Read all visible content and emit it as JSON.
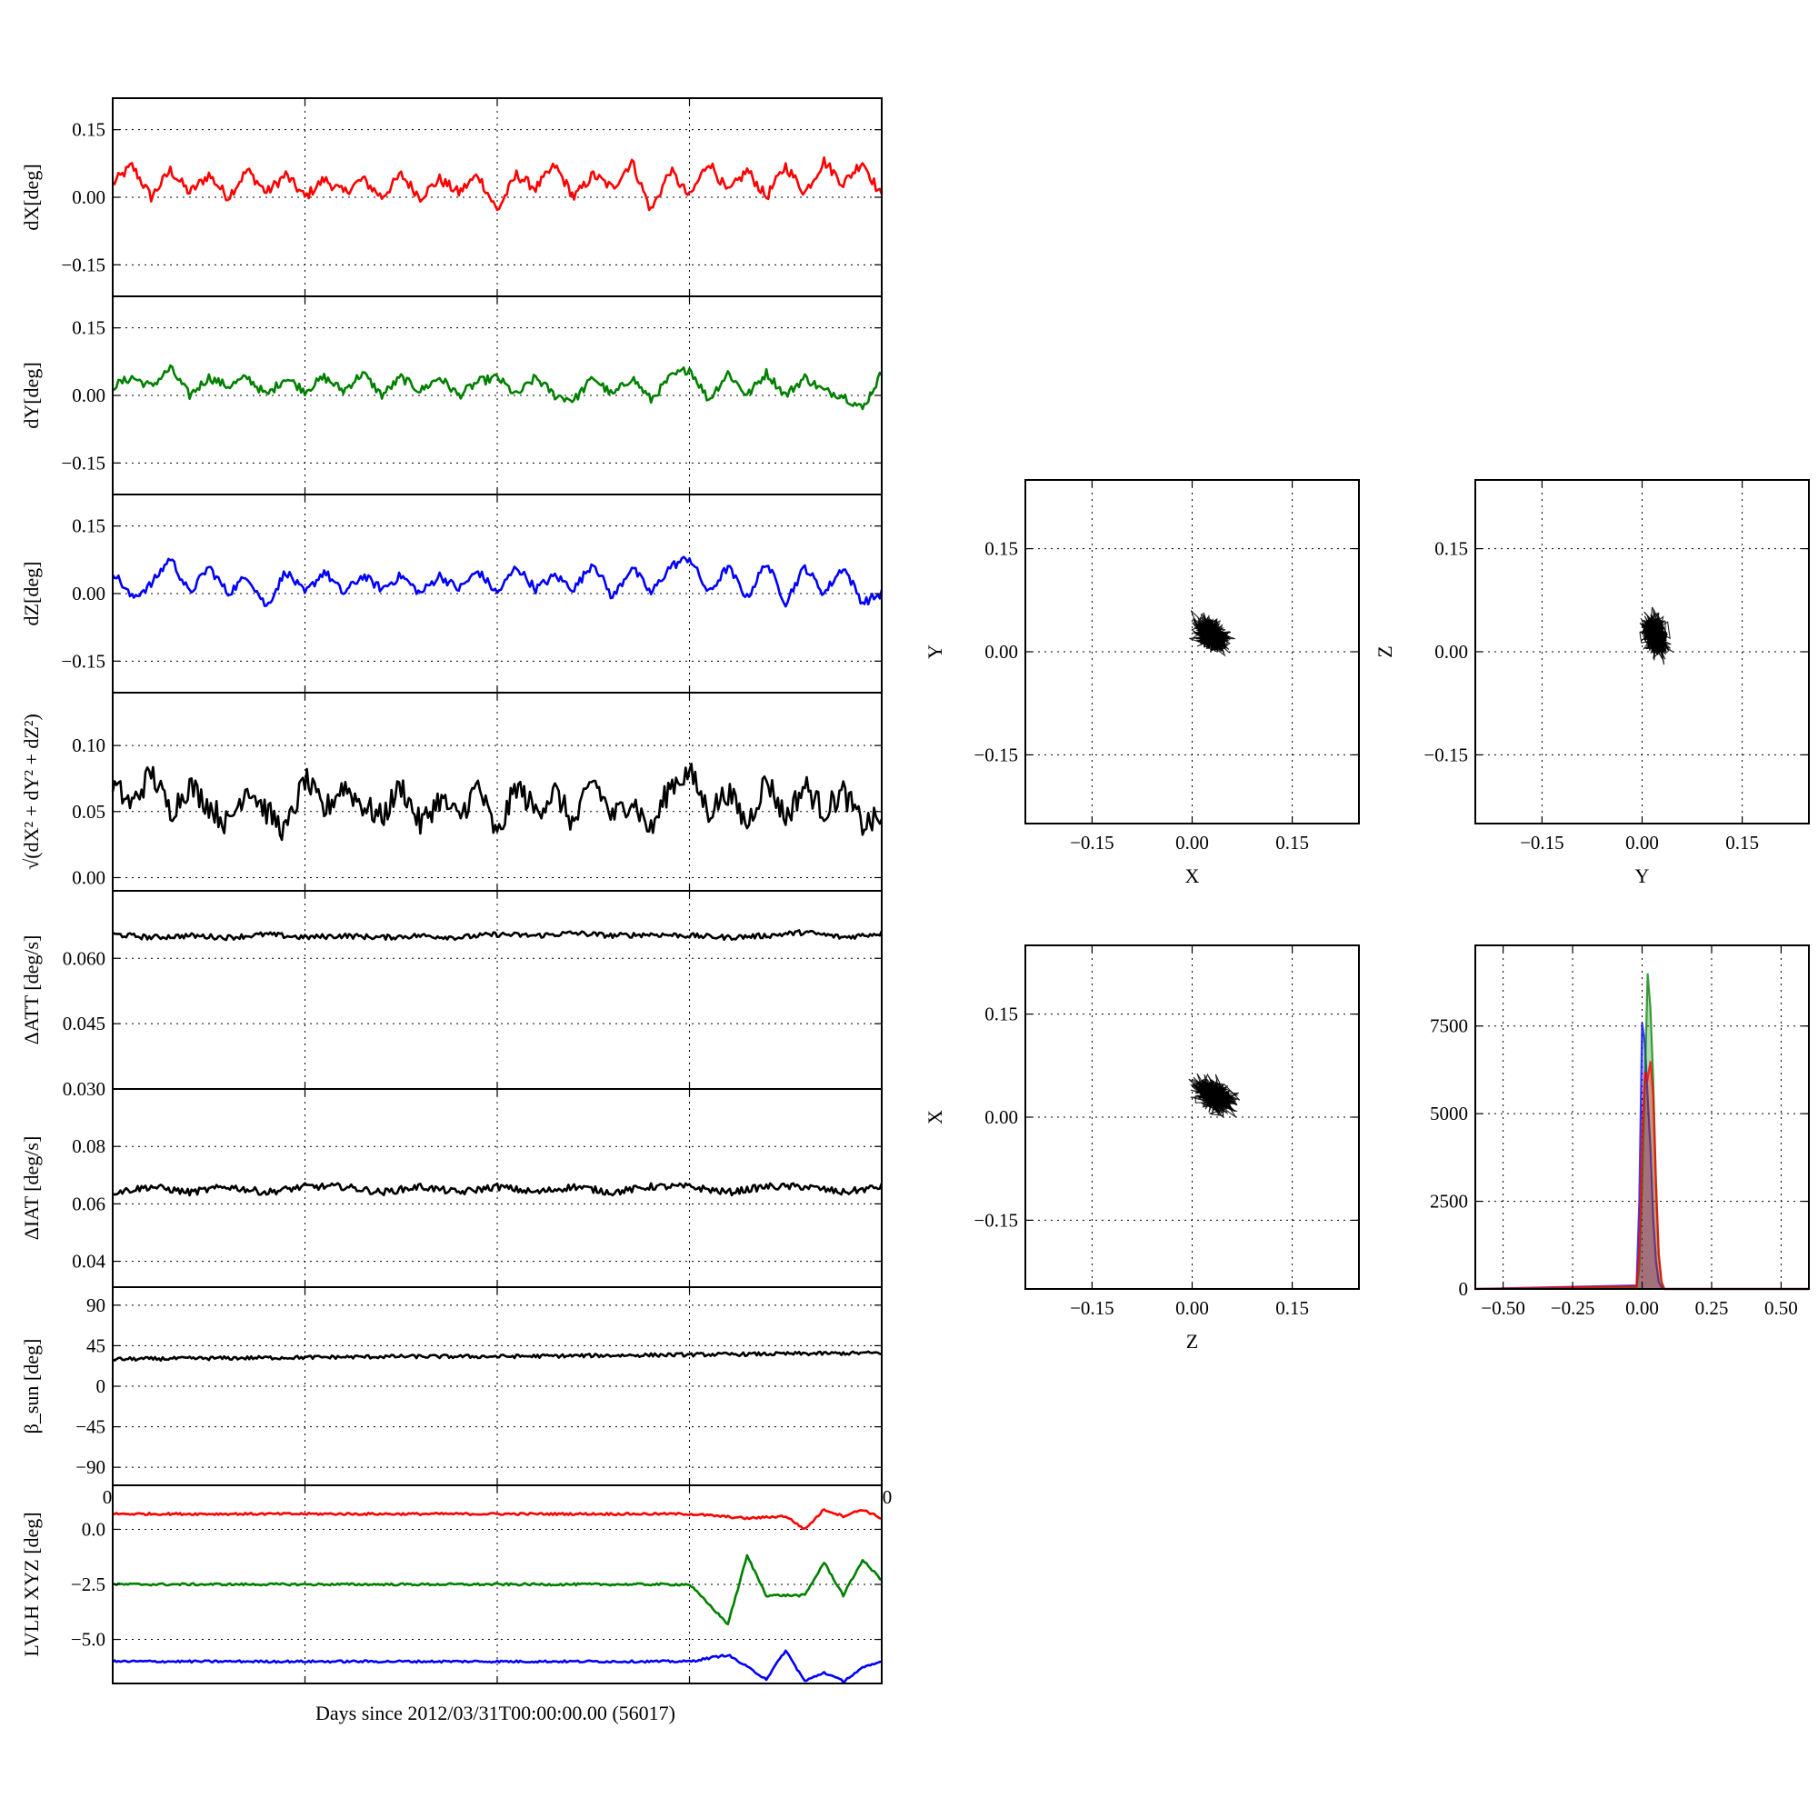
{
  "figure": {
    "xlabel": "Days since 2012/03/31T00:00:00.00 (56017)"
  },
  "colors": {
    "red": "#ff0000",
    "green": "#008000",
    "blue": "#0000ff",
    "black": "#000000"
  },
  "chart_data": [
    {
      "type": "line",
      "panel": "dX",
      "ylabel": "dX[deg]",
      "ylim": [
        -0.22,
        0.22
      ],
      "yticks": [
        -0.15,
        0.0,
        0.15
      ],
      "ytick_labels": [
        "−0.15",
        "0.00",
        "0.15"
      ],
      "xlim": [
        0,
        4
      ],
      "xticks": [
        0,
        1,
        2,
        3,
        4
      ],
      "grid": true,
      "series": [
        {
          "color": "red",
          "x": [
            0,
            0.1,
            0.2,
            0.3,
            0.4,
            0.5,
            0.6,
            0.7,
            0.8,
            0.9,
            1.0,
            1.1,
            1.2,
            1.3,
            1.4,
            1.5,
            1.6,
            1.7,
            1.8,
            1.9,
            2.0,
            2.1,
            2.2,
            2.3,
            2.4,
            2.5,
            2.6,
            2.7,
            2.8,
            2.9,
            3.0,
            3.1,
            3.2,
            3.3,
            3.4,
            3.5,
            3.6,
            3.7,
            3.8,
            3.9,
            4.0
          ],
          "y": [
            0.03,
            0.07,
            0.0,
            0.06,
            0.01,
            0.05,
            0.0,
            0.06,
            0.01,
            0.05,
            0.0,
            0.04,
            0.01,
            0.04,
            0.0,
            0.05,
            0.0,
            0.04,
            0.01,
            0.05,
            -0.03,
            0.05,
            0.02,
            0.07,
            0.0,
            0.05,
            0.02,
            0.08,
            -0.03,
            0.06,
            0.0,
            0.08,
            0.01,
            0.06,
            0.0,
            0.07,
            0.01,
            0.08,
            0.03,
            0.08,
            0.0
          ]
        }
      ]
    },
    {
      "type": "line",
      "panel": "dY",
      "ylabel": "dY[deg]",
      "ylim": [
        -0.22,
        0.22
      ],
      "yticks": [
        -0.15,
        0.0,
        0.15
      ],
      "ytick_labels": [
        "−0.15",
        "0.00",
        "0.15"
      ],
      "xlim": [
        0,
        4
      ],
      "xticks": [
        0,
        1,
        2,
        3,
        4
      ],
      "grid": true,
      "series": [
        {
          "color": "green",
          "x": [
            0,
            0.1,
            0.2,
            0.3,
            0.4,
            0.5,
            0.6,
            0.7,
            0.8,
            0.9,
            1.0,
            1.1,
            1.2,
            1.3,
            1.4,
            1.5,
            1.6,
            1.7,
            1.8,
            1.9,
            2.0,
            2.1,
            2.2,
            2.3,
            2.4,
            2.5,
            2.6,
            2.7,
            2.8,
            2.9,
            3.0,
            3.1,
            3.2,
            3.3,
            3.4,
            3.5,
            3.6,
            3.7,
            3.8,
            3.9,
            4.0
          ],
          "y": [
            0.02,
            0.04,
            0.02,
            0.06,
            0.0,
            0.04,
            0.02,
            0.04,
            0.0,
            0.04,
            0.01,
            0.04,
            0.01,
            0.05,
            0.0,
            0.04,
            0.01,
            0.04,
            0.0,
            0.03,
            0.04,
            0.0,
            0.04,
            0.0,
            -0.01,
            0.04,
            0.0,
            0.04,
            -0.01,
            0.04,
            0.06,
            -0.01,
            0.05,
            0.0,
            0.05,
            0.0,
            0.04,
            0.01,
            0.0,
            -0.03,
            0.05
          ]
        }
      ]
    },
    {
      "type": "line",
      "panel": "dZ",
      "ylabel": "dZ[deg]",
      "ylim": [
        -0.22,
        0.22
      ],
      "yticks": [
        -0.15,
        0.0,
        0.15
      ],
      "ytick_labels": [
        "−0.15",
        "0.00",
        "0.15"
      ],
      "xlim": [
        0,
        4
      ],
      "xticks": [
        0,
        1,
        2,
        3,
        4
      ],
      "grid": true,
      "series": [
        {
          "color": "blue",
          "x": [
            0,
            0.1,
            0.2,
            0.3,
            0.4,
            0.5,
            0.6,
            0.7,
            0.8,
            0.9,
            1.0,
            1.1,
            1.2,
            1.3,
            1.4,
            1.5,
            1.6,
            1.7,
            1.8,
            1.9,
            2.0,
            2.1,
            2.2,
            2.3,
            2.4,
            2.5,
            2.6,
            2.7,
            2.8,
            2.9,
            3.0,
            3.1,
            3.2,
            3.3,
            3.4,
            3.5,
            3.6,
            3.7,
            3.8,
            3.9,
            4.0
          ],
          "y": [
            0.05,
            -0.01,
            0.02,
            0.08,
            0.0,
            0.06,
            0.0,
            0.04,
            -0.03,
            0.05,
            0.0,
            0.05,
            0.0,
            0.04,
            0.01,
            0.04,
            0.0,
            0.04,
            0.01,
            0.05,
            0.0,
            0.06,
            0.01,
            0.04,
            0.01,
            0.07,
            -0.01,
            0.06,
            0.0,
            0.06,
            0.08,
            0.0,
            0.06,
            -0.01,
            0.07,
            -0.02,
            0.06,
            0.0,
            0.06,
            -0.02,
            0.0
          ]
        }
      ]
    },
    {
      "type": "line",
      "panel": "norm",
      "ylabel": "√(dX² + dY² + dZ²)",
      "ylim": [
        -0.01,
        0.14
      ],
      "yticks": [
        0.0,
        0.05,
        0.1
      ],
      "ytick_labels": [
        "0.00",
        "0.05",
        "0.10"
      ],
      "xlim": [
        0,
        4
      ],
      "xticks": [
        0,
        1,
        2,
        3,
        4
      ],
      "grid": true,
      "series": [
        {
          "color": "black",
          "x": [
            0,
            0.1,
            0.2,
            0.3,
            0.4,
            0.5,
            0.6,
            0.7,
            0.8,
            0.9,
            1.0,
            1.1,
            1.2,
            1.3,
            1.4,
            1.5,
            1.6,
            1.7,
            1.8,
            1.9,
            2.0,
            2.1,
            2.2,
            2.3,
            2.4,
            2.5,
            2.6,
            2.7,
            2.8,
            2.9,
            3.0,
            3.1,
            3.2,
            3.3,
            3.4,
            3.5,
            3.6,
            3.7,
            3.8,
            3.9,
            4.0
          ],
          "y": [
            0.07,
            0.055,
            0.08,
            0.05,
            0.07,
            0.055,
            0.04,
            0.07,
            0.05,
            0.035,
            0.075,
            0.05,
            0.07,
            0.055,
            0.045,
            0.07,
            0.04,
            0.06,
            0.045,
            0.07,
            0.03,
            0.07,
            0.05,
            0.065,
            0.04,
            0.075,
            0.045,
            0.06,
            0.035,
            0.07,
            0.08,
            0.05,
            0.065,
            0.04,
            0.075,
            0.045,
            0.07,
            0.05,
            0.065,
            0.04,
            0.045
          ]
        }
      ]
    },
    {
      "type": "line",
      "panel": "dATT",
      "ylabel": "ΔATT [deg/s]",
      "ylim": [
        0.03,
        0.0755
      ],
      "yticks": [
        0.03,
        0.045,
        0.06
      ],
      "ytick_labels": [
        "0.030",
        "0.045",
        "0.060"
      ],
      "xlim": [
        0,
        4
      ],
      "xticks": [
        0,
        1,
        2,
        3,
        4
      ],
      "grid": true,
      "series": [
        {
          "color": "black",
          "x": [
            0,
            0.2,
            0.4,
            0.6,
            0.8,
            1.0,
            1.2,
            1.4,
            1.6,
            1.8,
            2.0,
            2.2,
            2.4,
            2.6,
            2.8,
            3.0,
            3.2,
            3.4,
            3.6,
            3.8,
            4.0
          ],
          "y": [
            0.0655,
            0.0648,
            0.0652,
            0.0648,
            0.0655,
            0.0648,
            0.0652,
            0.0648,
            0.0652,
            0.0648,
            0.0655,
            0.0652,
            0.0658,
            0.0652,
            0.0655,
            0.0652,
            0.0648,
            0.0652,
            0.066,
            0.0648,
            0.0658
          ]
        }
      ]
    },
    {
      "type": "line",
      "panel": "dIAT",
      "ylabel": "ΔIAT [deg/s]",
      "ylim": [
        0.031,
        0.1
      ],
      "yticks": [
        0.04,
        0.06,
        0.08
      ],
      "ytick_labels": [
        "0.04",
        "0.06",
        "0.08"
      ],
      "xlim": [
        0,
        4
      ],
      "xticks": [
        0,
        1,
        2,
        3,
        4
      ],
      "grid": true,
      "series": [
        {
          "color": "black",
          "x": [
            0,
            0.2,
            0.4,
            0.6,
            0.8,
            1.0,
            1.2,
            1.4,
            1.6,
            1.8,
            2.0,
            2.2,
            2.4,
            2.6,
            2.8,
            3.0,
            3.2,
            3.4,
            3.6,
            3.8,
            4.0
          ],
          "y": [
            0.064,
            0.066,
            0.064,
            0.066,
            0.064,
            0.066,
            0.066,
            0.064,
            0.066,
            0.064,
            0.066,
            0.064,
            0.066,
            0.064,
            0.066,
            0.066,
            0.064,
            0.066,
            0.066,
            0.064,
            0.066
          ]
        }
      ]
    },
    {
      "type": "line",
      "panel": "beta",
      "ylabel": "β_sun [deg]",
      "ylim": [
        -110,
        110
      ],
      "yticks": [
        -90,
        -45,
        0,
        45,
        90
      ],
      "ytick_labels": [
        "−90",
        "−45",
        "0",
        "45",
        "90"
      ],
      "xlim": [
        0,
        4
      ],
      "xticks": [
        0,
        1,
        2,
        3,
        4
      ],
      "grid": true,
      "series": [
        {
          "color": "black",
          "x": [
            0,
            0.5,
            1.0,
            1.5,
            2.0,
            2.5,
            3.0,
            3.5,
            4.0
          ],
          "y": [
            30,
            31,
            32,
            33,
            33,
            34,
            35,
            36,
            37
          ]
        }
      ]
    },
    {
      "type": "line",
      "panel": "lvlh",
      "ylabel": "LVLH XYZ [deg]",
      "ylim": [
        -7,
        2
      ],
      "yticks": [
        -5.0,
        -2.5,
        0.0
      ],
      "ytick_labels": [
        "−5.0",
        "−2.5",
        "0.0"
      ],
      "xlim": [
        0,
        4
      ],
      "xticks": [
        0,
        1,
        2,
        3,
        4
      ],
      "xtick_labels_visible": [
        "0",
        "0"
      ],
      "grid": true,
      "series": [
        {
          "color": "red",
          "x": [
            0,
            0.5,
            1.0,
            1.5,
            2.0,
            2.5,
            3.0,
            3.3,
            3.5,
            3.6,
            3.7,
            3.8,
            3.9,
            4.0
          ],
          "y": [
            0.7,
            0.7,
            0.7,
            0.7,
            0.7,
            0.7,
            0.7,
            0.5,
            0.6,
            0.0,
            0.9,
            0.6,
            0.9,
            0.5
          ]
        },
        {
          "color": "green",
          "x": [
            0,
            0.5,
            1.0,
            1.5,
            2.0,
            2.5,
            3.0,
            3.2,
            3.3,
            3.4,
            3.5,
            3.6,
            3.7,
            3.8,
            3.9,
            4.0
          ],
          "y": [
            -2.5,
            -2.5,
            -2.5,
            -2.5,
            -2.5,
            -2.5,
            -2.5,
            -4.3,
            -1.2,
            -3.0,
            -3.0,
            -3.0,
            -1.5,
            -3.0,
            -1.4,
            -2.3
          ]
        },
        {
          "color": "blue",
          "x": [
            0,
            0.5,
            1.0,
            1.5,
            2.0,
            2.5,
            3.0,
            3.2,
            3.4,
            3.5,
            3.6,
            3.7,
            3.8,
            3.9,
            4.0
          ],
          "y": [
            -6.0,
            -6.0,
            -6.0,
            -6.0,
            -6.0,
            -6.0,
            -6.0,
            -5.7,
            -6.8,
            -5.5,
            -6.9,
            -6.5,
            -6.9,
            -6.3,
            -6.0
          ]
        }
      ]
    },
    {
      "type": "scatter",
      "panel": "XY",
      "xlabel": "X",
      "ylabel": "Y",
      "xlim": [
        -0.25,
        0.25
      ],
      "ylim": [
        -0.25,
        0.25
      ],
      "xticks": [
        -0.15,
        0.0,
        0.15
      ],
      "xtick_labels": [
        "−0.15",
        "0.00",
        "0.15"
      ],
      "yticks": [
        -0.15,
        0.0,
        0.15
      ],
      "ytick_labels": [
        "−0.15",
        "0.00",
        "0.15"
      ],
      "grid": true,
      "cloud": {
        "center": [
          0.03,
          0.025
        ],
        "spread": [
          0.025,
          0.02
        ],
        "color": "black"
      }
    },
    {
      "type": "scatter",
      "panel": "YZ",
      "xlabel": "Y",
      "ylabel": "Z",
      "xlim": [
        -0.25,
        0.25
      ],
      "ylim": [
        -0.25,
        0.25
      ],
      "xticks": [
        -0.15,
        0.0,
        0.15
      ],
      "xtick_labels": [
        "−0.15",
        "0.00",
        "0.15"
      ],
      "yticks": [
        -0.15,
        0.0,
        0.15
      ],
      "ytick_labels": [
        "−0.15",
        "0.00",
        "0.15"
      ],
      "grid": true,
      "cloud": {
        "center": [
          0.02,
          0.025
        ],
        "spread": [
          0.017,
          0.025
        ],
        "color": "black"
      }
    },
    {
      "type": "scatter",
      "panel": "ZX",
      "xlabel": "Z",
      "ylabel": "X",
      "xlim": [
        -0.25,
        0.25
      ],
      "ylim": [
        -0.25,
        0.25
      ],
      "xticks": [
        -0.15,
        0.0,
        0.15
      ],
      "xtick_labels": [
        "−0.15",
        "0.00",
        "0.15"
      ],
      "yticks": [
        -0.15,
        0.0,
        0.15
      ],
      "ytick_labels": [
        "−0.15",
        "0.00",
        "0.15"
      ],
      "grid": true,
      "cloud": {
        "center": [
          0.035,
          0.03
        ],
        "spread": [
          0.028,
          0.02
        ],
        "color": "black"
      }
    },
    {
      "type": "histogram",
      "panel": "hist",
      "xlim": [
        -0.6,
        0.6
      ],
      "ylim": [
        0,
        9800
      ],
      "xticks": [
        -0.5,
        -0.25,
        0.0,
        0.25,
        0.5
      ],
      "xtick_labels": [
        "−0.50",
        "−0.25",
        "0.00",
        "0.25",
        "0.50"
      ],
      "yticks": [
        0,
        2500,
        5000,
        7500
      ],
      "ytick_labels": [
        "0",
        "2500",
        "5000",
        "7500"
      ],
      "grid": true,
      "series": [
        {
          "color": "blue",
          "x": [
            -0.6,
            -0.02,
            -0.01,
            0.0,
            0.01,
            0.02,
            0.03,
            0.04,
            0.05,
            0.06,
            0.07,
            0.08,
            0.6
          ],
          "y": [
            0,
            100,
            2500,
            7600,
            7000,
            5500,
            4000,
            2000,
            800,
            200,
            50,
            0,
            0
          ]
        },
        {
          "color": "green",
          "x": [
            -0.6,
            -0.02,
            -0.01,
            0.0,
            0.01,
            0.02,
            0.03,
            0.04,
            0.05,
            0.06,
            0.07,
            0.08,
            0.6
          ],
          "y": [
            0,
            50,
            600,
            3000,
            6000,
            9000,
            8000,
            6000,
            3000,
            1000,
            200,
            0,
            0
          ]
        },
        {
          "color": "red",
          "x": [
            -0.6,
            -0.02,
            -0.01,
            0.0,
            0.01,
            0.02,
            0.03,
            0.04,
            0.05,
            0.06,
            0.07,
            0.08,
            0.6
          ],
          "y": [
            0,
            80,
            1200,
            4500,
            6200,
            6000,
            6500,
            5500,
            3000,
            1000,
            200,
            0,
            0
          ]
        }
      ]
    }
  ]
}
